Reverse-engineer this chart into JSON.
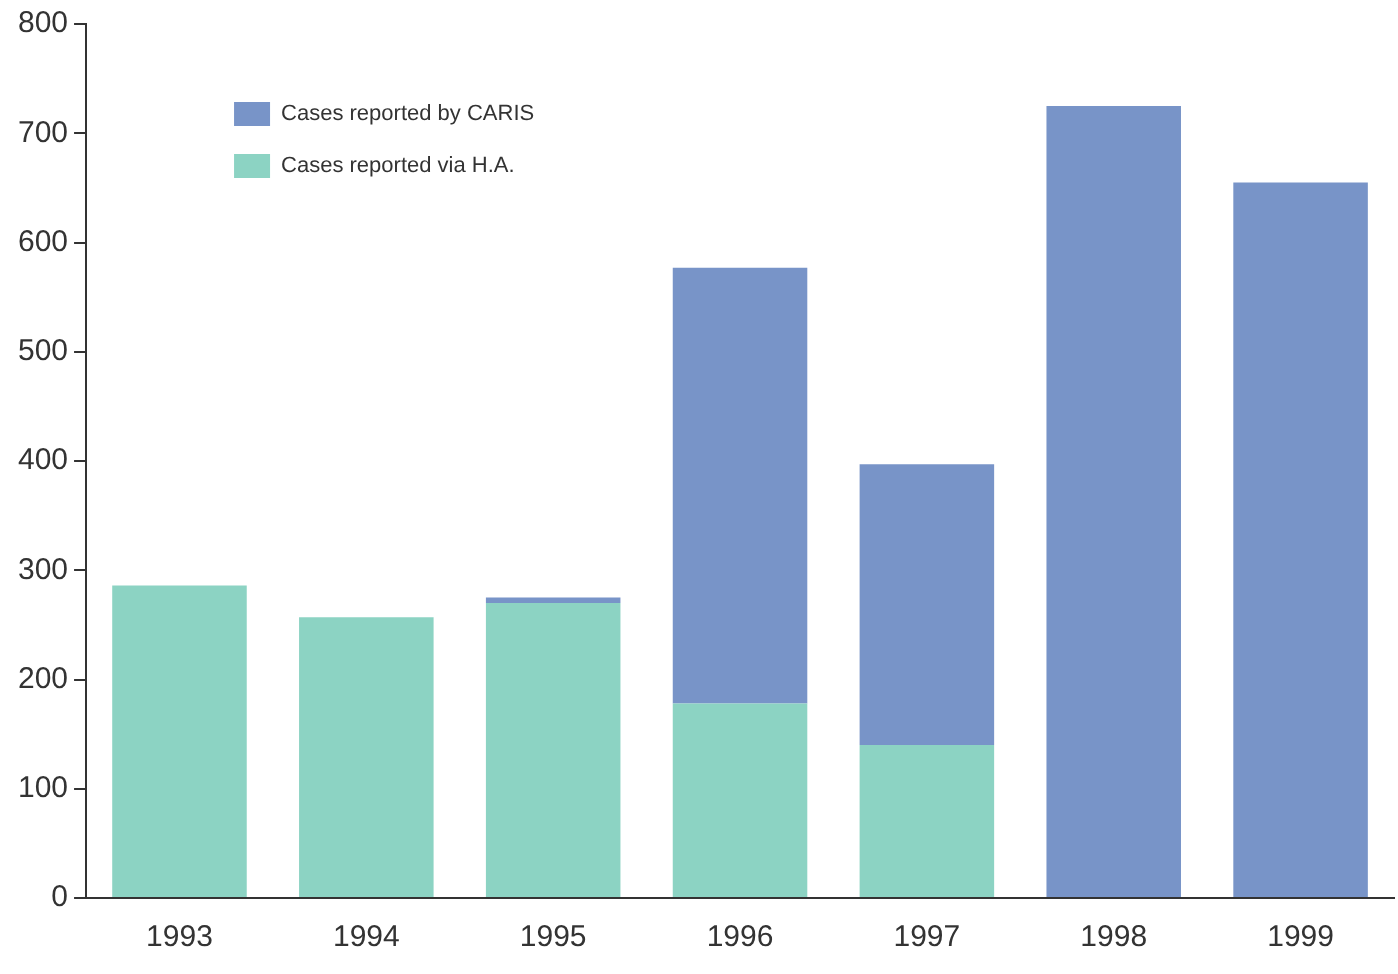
{
  "chart_data": {
    "type": "bar",
    "stacked": true,
    "categories": [
      "1993",
      "1994",
      "1995",
      "1996",
      "1997",
      "1998",
      "1999"
    ],
    "series": [
      {
        "name": "Cases reported via H.A.",
        "color": "#8cd3c3",
        "values": [
          286,
          257,
          270,
          178,
          140,
          0,
          0
        ]
      },
      {
        "name": "Cases reported by CARIS",
        "color": "#7894c8",
        "values": [
          0,
          0,
          5,
          399,
          257,
          725,
          655
        ]
      }
    ],
    "ylim": [
      0,
      800
    ],
    "yticks": [
      0,
      100,
      200,
      300,
      400,
      500,
      600,
      700,
      800
    ],
    "grid": false,
    "legend": "top left"
  }
}
